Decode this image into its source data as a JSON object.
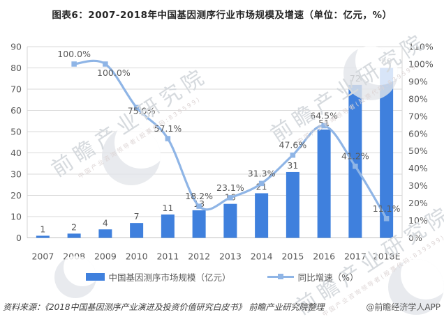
{
  "chart_data": {
    "type": "bar+line combo",
    "title": "图表6：2007-2018年中国基因测序行业市场规模及增速（单位：亿元，%）",
    "categories": [
      "2007",
      "2008",
      "2009",
      "2010",
      "2011",
      "2012",
      "2013",
      "2014",
      "2015",
      "2016",
      "2017",
      "2018E"
    ],
    "series": [
      {
        "name": "中国基因测序市场规模（亿元）",
        "type": "bar",
        "axis": "left",
        "color": "#3F80DD",
        "values": [
          1,
          2,
          4,
          7,
          11,
          13,
          16,
          21,
          31,
          51,
          72,
          80
        ],
        "data_labels": [
          "1",
          "2",
          "4",
          "7",
          "11",
          "13",
          "16",
          "21",
          "31",
          "51",
          "72",
          "80"
        ]
      },
      {
        "name": "同比增速（%）",
        "type": "line",
        "axis": "right",
        "color": "#8FB5E6",
        "values": [
          null,
          100.0,
          100.0,
          75.0,
          57.1,
          18.2,
          23.1,
          31.3,
          47.6,
          64.5,
          41.2,
          11.1
        ],
        "data_labels": [
          "",
          "100.0%",
          "100.0%",
          "75.0%",
          "57.1%",
          "18.2%",
          "23.1%",
          "31.3%",
          "47.6%",
          "64.5%",
          "41.2%",
          "11.1%"
        ]
      }
    ],
    "left_axis": {
      "min": 0,
      "max": 90,
      "ticks": [
        "0",
        "10",
        "20",
        "30",
        "40",
        "50",
        "60",
        "70",
        "80",
        "90"
      ]
    },
    "right_axis": {
      "min": 0,
      "max": 110,
      "ticks": [
        "0%",
        "10%",
        "20%",
        "30%",
        "40%",
        "50%",
        "60%",
        "70%",
        "80%",
        "90%",
        "100%",
        "110%"
      ]
    },
    "grid": true,
    "legend_position": "bottom"
  },
  "colors": {
    "bar": "#3F80DD",
    "line": "#8FB5E6",
    "gridline": "#D9D9D9",
    "axis_line": "#BFBFBF",
    "plot_border": "#D5D5D5",
    "label_text": "#595959",
    "title_text": "#262626"
  },
  "footer": {
    "source": "资料来源：《2018中国基因测序产业演进及投资价值研究白皮书》  前瞻产业研究院整理",
    "attribution": "@前瞻经济学人APP"
  },
  "watermark": {
    "text": "前瞻产业研究院",
    "subtext": "中国产业咨询领导者(股票代码:839599)"
  }
}
